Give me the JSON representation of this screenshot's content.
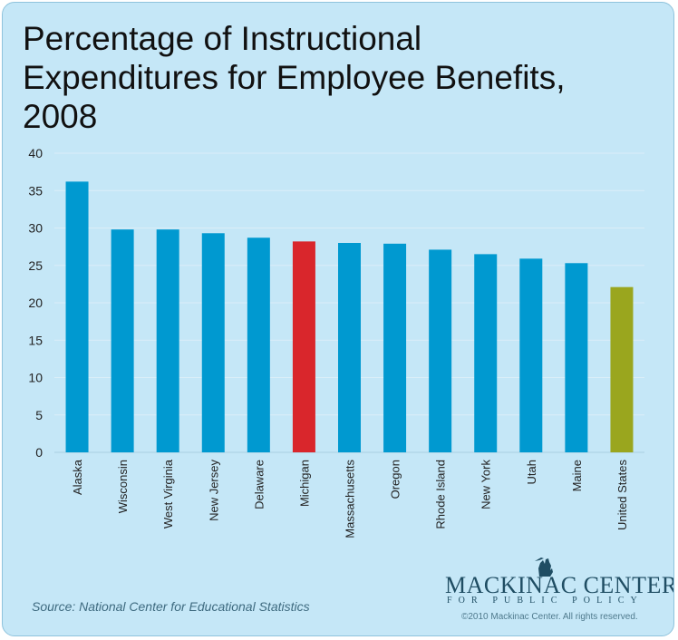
{
  "header": {
    "title_line1": "Percentage of Instructional",
    "title_line2": "Expenditures for Employee Benefits,",
    "title_line3": "2008"
  },
  "footer": {
    "source": "Source: National Center for Educational Statistics",
    "logo_main": "MACKINAC CENTER",
    "logo_sub": "FOR PUBLIC POLICY",
    "copyright": "©2010 Mackinac Center. All rights reserved."
  },
  "colors": {
    "default_bar": "#0099d0",
    "highlight_bar": "#d9262c",
    "national_bar": "#9aa61e",
    "background": "#c5e7f7"
  },
  "chart_data": {
    "type": "bar",
    "title": "Percentage of Instructional Expenditures for Employee Benefits, 2008",
    "xlabel": "",
    "ylabel": "",
    "categories": [
      "Alaska",
      "Wisconsin",
      "West Virginia",
      "New Jersey",
      "Delaware",
      "Michigan",
      "Massachusetts",
      "Oregon",
      "Rhode Island",
      "New York",
      "Utah",
      "Maine",
      "United States"
    ],
    "values": [
      36.2,
      29.8,
      29.8,
      29.3,
      28.7,
      28.2,
      28.0,
      27.9,
      27.1,
      26.5,
      25.9,
      25.3,
      22.1
    ],
    "highlight": {
      "Michigan": "highlight_bar",
      "United States": "national_bar"
    },
    "ylim": [
      0,
      40
    ],
    "yticks": [
      0,
      5,
      10,
      15,
      20,
      25,
      30,
      35,
      40
    ],
    "grid": true,
    "legend": "none"
  }
}
